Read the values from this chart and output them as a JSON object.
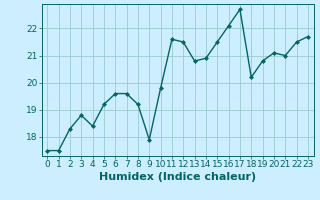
{
  "x": [
    0,
    1,
    2,
    3,
    4,
    5,
    6,
    7,
    8,
    9,
    10,
    11,
    12,
    13,
    14,
    15,
    16,
    17,
    18,
    19,
    20,
    21,
    22,
    23
  ],
  "y": [
    17.5,
    17.5,
    18.3,
    18.8,
    18.4,
    19.2,
    19.6,
    19.6,
    19.2,
    17.9,
    19.8,
    21.6,
    21.5,
    20.8,
    20.9,
    21.5,
    22.1,
    22.7,
    20.2,
    20.8,
    21.1,
    21.0,
    21.5,
    21.7
  ],
  "xlabel": "Humidex (Indice chaleur)",
  "ylim": [
    17.3,
    22.9
  ],
  "xlim": [
    -0.5,
    23.5
  ],
  "yticks": [
    18,
    19,
    20,
    21,
    22
  ],
  "xticks": [
    0,
    1,
    2,
    3,
    4,
    5,
    6,
    7,
    8,
    9,
    10,
    11,
    12,
    13,
    14,
    15,
    16,
    17,
    18,
    19,
    20,
    21,
    22,
    23
  ],
  "line_color": "#006666",
  "marker": "D",
  "marker_size": 2.0,
  "bg_color": "#cceeff",
  "grid_color": "#99cccc",
  "xlabel_fontsize": 8,
  "tick_fontsize": 6.5,
  "lw": 1.0
}
